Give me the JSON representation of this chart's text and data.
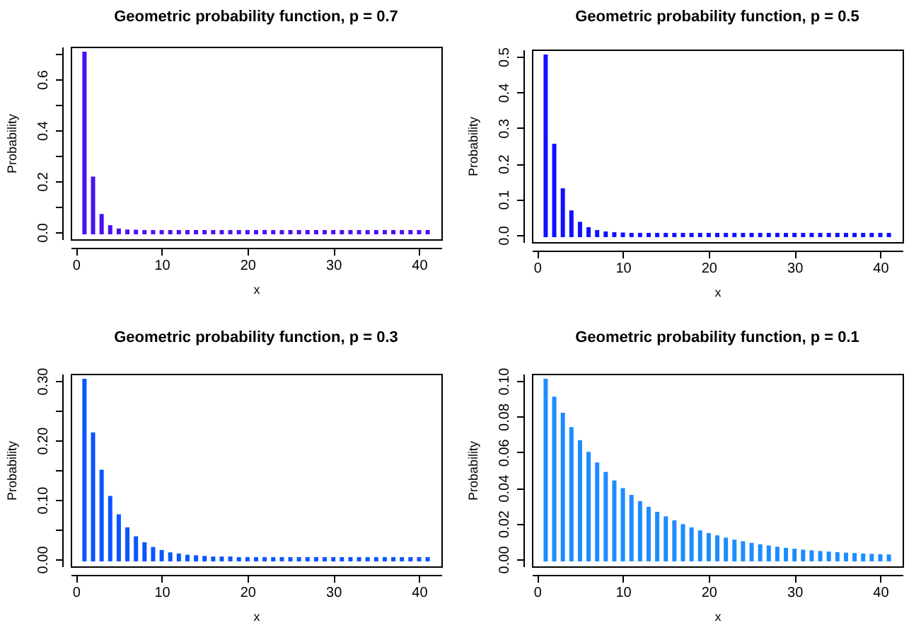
{
  "chart_data": [
    {
      "type": "bar",
      "title": "Geometric probability function, p = 0.7",
      "xlabel": "x",
      "ylabel": "Probability",
      "color": "#4a10f0",
      "x": [
        1,
        2,
        3,
        4,
        5,
        6,
        7,
        8,
        9,
        10,
        11,
        12,
        13,
        14,
        15,
        16,
        17,
        18,
        19,
        20,
        21,
        22,
        23,
        24,
        25,
        26,
        27,
        28,
        29,
        30,
        31,
        32,
        33,
        34,
        35,
        36,
        37,
        38,
        39,
        40,
        41
      ],
      "values": [
        0.7,
        0.21,
        0.063,
        0.019,
        0.006,
        0.002,
        0.001,
        0,
        0,
        0,
        0,
        0,
        0,
        0,
        0,
        0,
        0,
        0,
        0,
        0,
        0,
        0,
        0,
        0,
        0,
        0,
        0,
        0,
        0,
        0,
        0,
        0,
        0,
        0,
        0,
        0,
        0,
        0,
        0,
        0,
        0
      ],
      "xlim": [
        -0.6,
        42.6
      ],
      "xticks": [
        0,
        10,
        20,
        30,
        40
      ],
      "ylim": [
        -0.028,
        0.728
      ],
      "yticks": [
        {
          "value": 0,
          "label": "0.0"
        },
        {
          "value": 0.1,
          "label": null
        },
        {
          "value": 0.2,
          "label": "0.2"
        },
        {
          "value": 0.3,
          "label": null
        },
        {
          "value": 0.4,
          "label": "0.4"
        },
        {
          "value": 0.5,
          "label": null
        },
        {
          "value": 0.6,
          "label": "0.6"
        },
        {
          "value": 0.7,
          "label": null
        }
      ]
    },
    {
      "type": "bar",
      "title": "Geometric probability function, p = 0.5",
      "xlabel": "x",
      "ylabel": "Probability",
      "color": "#1010ff",
      "x": [
        1,
        2,
        3,
        4,
        5,
        6,
        7,
        8,
        9,
        10,
        11,
        12,
        13,
        14,
        15,
        16,
        17,
        18,
        19,
        20,
        21,
        22,
        23,
        24,
        25,
        26,
        27,
        28,
        29,
        30,
        31,
        32,
        33,
        34,
        35,
        36,
        37,
        38,
        39,
        40,
        41
      ],
      "values": [
        0.5,
        0.25,
        0.125,
        0.063,
        0.031,
        0.016,
        0.008,
        0.004,
        0.002,
        0.001,
        0,
        0,
        0,
        0,
        0,
        0,
        0,
        0,
        0,
        0,
        0,
        0,
        0,
        0,
        0,
        0,
        0,
        0,
        0,
        0,
        0,
        0,
        0,
        0,
        0,
        0,
        0,
        0,
        0,
        0,
        0
      ],
      "xlim": [
        -0.6,
        42.6
      ],
      "xticks": [
        0,
        10,
        20,
        30,
        40
      ],
      "ylim": [
        -0.02,
        0.52
      ],
      "yticks": [
        {
          "value": 0,
          "label": "0.0"
        },
        0.1,
        0.2,
        0.3,
        0.4,
        0.5
      ]
    },
    {
      "type": "bar",
      "title": "Geometric probability function, p = 0.3",
      "xlabel": "x",
      "ylabel": "Probability",
      "color": "#0a55ff",
      "x": [
        1,
        2,
        3,
        4,
        5,
        6,
        7,
        8,
        9,
        10,
        11,
        12,
        13,
        14,
        15,
        16,
        17,
        18,
        19,
        20,
        21,
        22,
        23,
        24,
        25,
        26,
        27,
        28,
        29,
        30,
        31,
        32,
        33,
        34,
        35,
        36,
        37,
        38,
        39,
        40,
        41
      ],
      "values": [
        0.3,
        0.21,
        0.147,
        0.103,
        0.072,
        0.05,
        0.035,
        0.025,
        0.017,
        0.012,
        0.008,
        0.006,
        0.004,
        0.003,
        0.002,
        0.001,
        0.001,
        0.001,
        0,
        0,
        0,
        0,
        0,
        0,
        0,
        0,
        0,
        0,
        0,
        0,
        0,
        0,
        0,
        0,
        0,
        0,
        0,
        0,
        0,
        0,
        0
      ],
      "xlim": [
        -0.6,
        42.6
      ],
      "xticks": [
        0,
        10,
        20,
        30,
        40
      ],
      "ylim": [
        -0.012,
        0.312
      ],
      "yticks": [
        {
          "value": 0,
          "label": "0.00"
        },
        {
          "value": 0.05,
          "label": null
        },
        {
          "value": 0.1,
          "label": "0.10"
        },
        {
          "value": 0.15,
          "label": null
        },
        {
          "value": 0.2,
          "label": "0.20"
        },
        {
          "value": 0.25,
          "label": null
        },
        {
          "value": 0.3,
          "label": "0.30"
        }
      ]
    },
    {
      "type": "bar",
      "title": "Geometric probability function, p = 0.1",
      "xlabel": "x",
      "ylabel": "Probability",
      "color": "#1e8cff",
      "x": [
        1,
        2,
        3,
        4,
        5,
        6,
        7,
        8,
        9,
        10,
        11,
        12,
        13,
        14,
        15,
        16,
        17,
        18,
        19,
        20,
        21,
        22,
        23,
        24,
        25,
        26,
        27,
        28,
        29,
        30,
        31,
        32,
        33,
        34,
        35,
        36,
        37,
        38,
        39,
        40,
        41
      ],
      "values": [
        0.1,
        0.09,
        0.081,
        0.0729,
        0.0656,
        0.059,
        0.0531,
        0.0478,
        0.043,
        0.0387,
        0.0349,
        0.0314,
        0.0282,
        0.0254,
        0.0229,
        0.0206,
        0.0185,
        0.0167,
        0.015,
        0.0135,
        0.0122,
        0.0109,
        0.0098,
        0.0089,
        0.008,
        0.0072,
        0.0065,
        0.0058,
        0.0052,
        0.0047,
        0.0042,
        0.0038,
        0.0034,
        0.0031,
        0.0028,
        0.0025,
        0.0023,
        0.002,
        0.0018,
        0.0016,
        0.0015
      ],
      "xlim": [
        -0.6,
        42.6
      ],
      "xticks": [
        0,
        10,
        20,
        30,
        40
      ],
      "ylim": [
        -0.004,
        0.104
      ],
      "yticks": [
        {
          "value": 0,
          "label": "0.00"
        },
        {
          "value": 0.02,
          "label": "0.02"
        },
        {
          "value": 0.04,
          "label": "0.04"
        },
        {
          "value": 0.06,
          "label": "0.06"
        },
        {
          "value": 0.08,
          "label": "0.08"
        },
        {
          "value": 0.1,
          "label": "0.10"
        }
      ]
    }
  ]
}
